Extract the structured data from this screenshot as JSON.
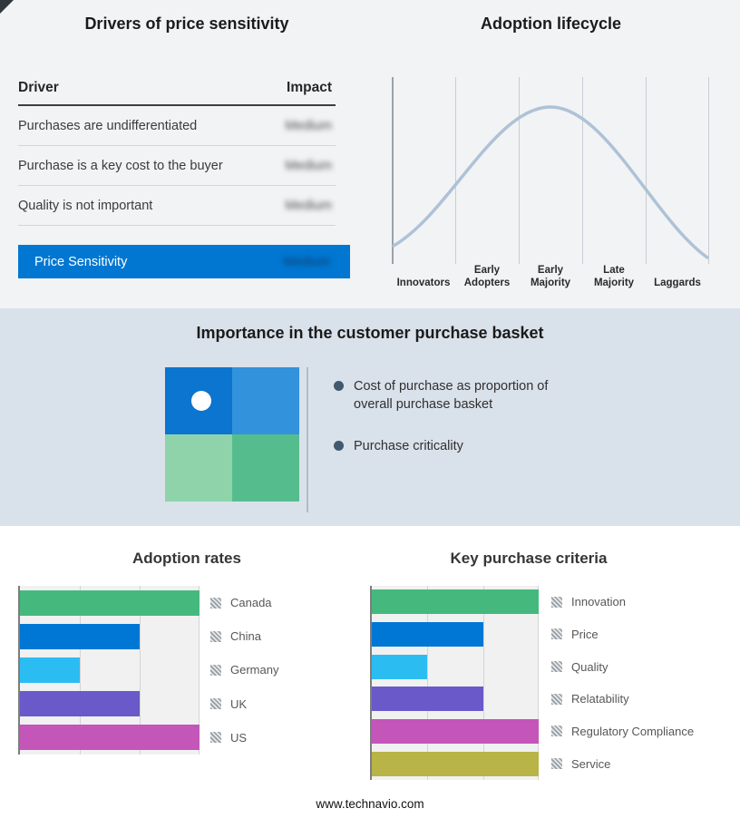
{
  "footer": {
    "url": "www.technavio.com"
  },
  "drivers": {
    "title": "Drivers of price sensitivity",
    "header": {
      "driver": "Driver",
      "impact": "Impact"
    },
    "rows": [
      {
        "driver": "Purchases are undifferentiated",
        "impact": "Medium"
      },
      {
        "driver": "Purchase is a key cost to the buyer",
        "impact": "Medium"
      },
      {
        "driver": "Quality is not important",
        "impact": "Medium"
      }
    ],
    "highlight": {
      "label": "Price Sensitivity",
      "impact": "Medium",
      "color": "#0177d2"
    }
  },
  "lifecycle": {
    "title": "Adoption lifecycle",
    "stages": [
      "Innovators",
      "Early Adopters",
      "Early Majority",
      "Late Majority",
      "Laggards"
    ],
    "curve_color": "#aec2d7"
  },
  "basket": {
    "title": "Importance in the customer purchase basket",
    "bullets": [
      "Cost of purchase as proportion of overall purchase basket",
      "Purchase criticality"
    ],
    "quadrant_colors": {
      "top_left": "#0b75d0",
      "top_right": "#3292dc",
      "bottom_left": "#8fd3ab",
      "bottom_right": "#55bd8d"
    }
  },
  "chart_data": [
    {
      "type": "bar",
      "title": "Adoption rates",
      "orientation": "horizontal",
      "categories": [
        "Canada",
        "China",
        "Germany",
        "UK",
        "US"
      ],
      "values": [
        3,
        2,
        1,
        2,
        3
      ],
      "xlim": [
        0,
        3
      ],
      "gridlines": 3,
      "colors": [
        "#45b97d",
        "#0077d4",
        "#2bbdf2",
        "#6a59c8",
        "#c455b9"
      ],
      "legend_position": "right",
      "legend_marker": "hatched-square"
    },
    {
      "type": "bar",
      "title": "Key purchase criteria",
      "orientation": "horizontal",
      "categories": [
        "Innovation",
        "Price",
        "Quality",
        "Relatability",
        "Regulatory Compliance",
        "Service"
      ],
      "values": [
        3,
        2,
        1,
        2,
        3,
        3
      ],
      "xlim": [
        0,
        3
      ],
      "gridlines": 3,
      "colors": [
        "#45b97d",
        "#0077d4",
        "#2bbdf2",
        "#6a59c8",
        "#c455b9",
        "#b8b447"
      ],
      "legend_position": "right",
      "legend_marker": "hatched-square"
    },
    {
      "type": "line",
      "title": "Adoption lifecycle",
      "x": [
        "Innovators",
        "Early Adopters",
        "Early Majority",
        "Late Majority",
        "Laggards"
      ],
      "shape": "bell-curve",
      "peak": "Early Majority"
    },
    {
      "type": "table",
      "title": "Drivers of price sensitivity",
      "columns": [
        "Driver",
        "Impact"
      ],
      "rows": [
        [
          "Purchases are undifferentiated",
          "Medium"
        ],
        [
          "Purchase is a key cost to the buyer",
          "Medium"
        ],
        [
          "Quality is not important",
          "Medium"
        ],
        [
          "Price Sensitivity",
          "Medium"
        ]
      ]
    }
  ]
}
